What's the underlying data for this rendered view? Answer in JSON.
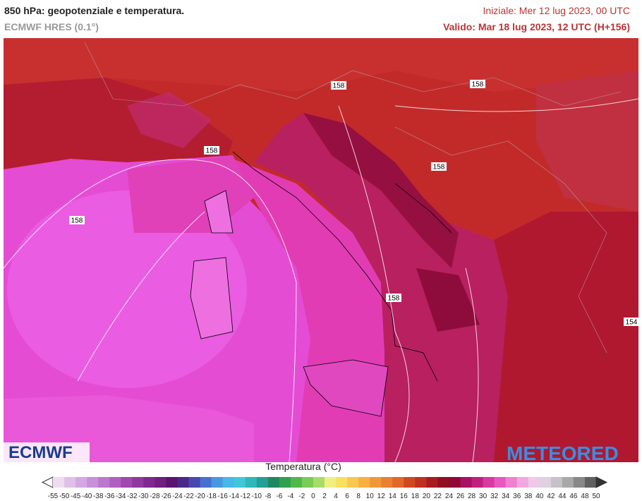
{
  "header": {
    "title": "850 hPa: geopotenziale e temperatura.",
    "model": "ECMWF HRES (0.1°)",
    "init": "Iniziale: Mer 12 lug 2023, 00 UTC",
    "valid": "Valido: Mar 18 lug 2023, 12 UTC (H+156)"
  },
  "map": {
    "contour_labels": [
      "158",
      "158",
      "158",
      "158",
      "158",
      "158",
      "154"
    ]
  },
  "logos": {
    "left": "ECMWF",
    "right": "METEORED"
  },
  "legend": {
    "title": "Temperatura (°C)",
    "ticks": [
      -55,
      -50,
      -45,
      -40,
      -38,
      -36,
      -34,
      -32,
      -30,
      -28,
      -26,
      -24,
      -22,
      -20,
      -18,
      -16,
      -14,
      -12,
      -10,
      -8,
      -6,
      -4,
      -2,
      0,
      2,
      4,
      6,
      8,
      10,
      12,
      14,
      16,
      18,
      20,
      22,
      24,
      26,
      28,
      30,
      32,
      34,
      36,
      38,
      40,
      42,
      44,
      46,
      48,
      50
    ],
    "colors": [
      "#f0dcf0",
      "#e0c0e8",
      "#d4a8e0",
      "#c890d8",
      "#bc78cc",
      "#b060c0",
      "#a048b0",
      "#9038a0",
      "#802890",
      "#701e80",
      "#5a1470",
      "#4a2888",
      "#4848b0",
      "#4870d0",
      "#4898e0",
      "#48b8e8",
      "#40c8d8",
      "#30b8b8",
      "#20a098",
      "#208860",
      "#30a050",
      "#50b848",
      "#78cc58",
      "#a8dc68",
      "#f0f080",
      "#f8e060",
      "#f8c850",
      "#f8b040",
      "#f09838",
      "#e88030",
      "#e06828",
      "#d04820",
      "#c03020",
      "#a81c20",
      "#901020",
      "#900838",
      "#a81060",
      "#c02080",
      "#d838a0",
      "#e858c0",
      "#f080d0",
      "#f0a8e0",
      "#f0c8e8",
      "#e0d0e0",
      "#c8c0c8",
      "#a8a8a8",
      "#888888",
      "#606060"
    ]
  }
}
